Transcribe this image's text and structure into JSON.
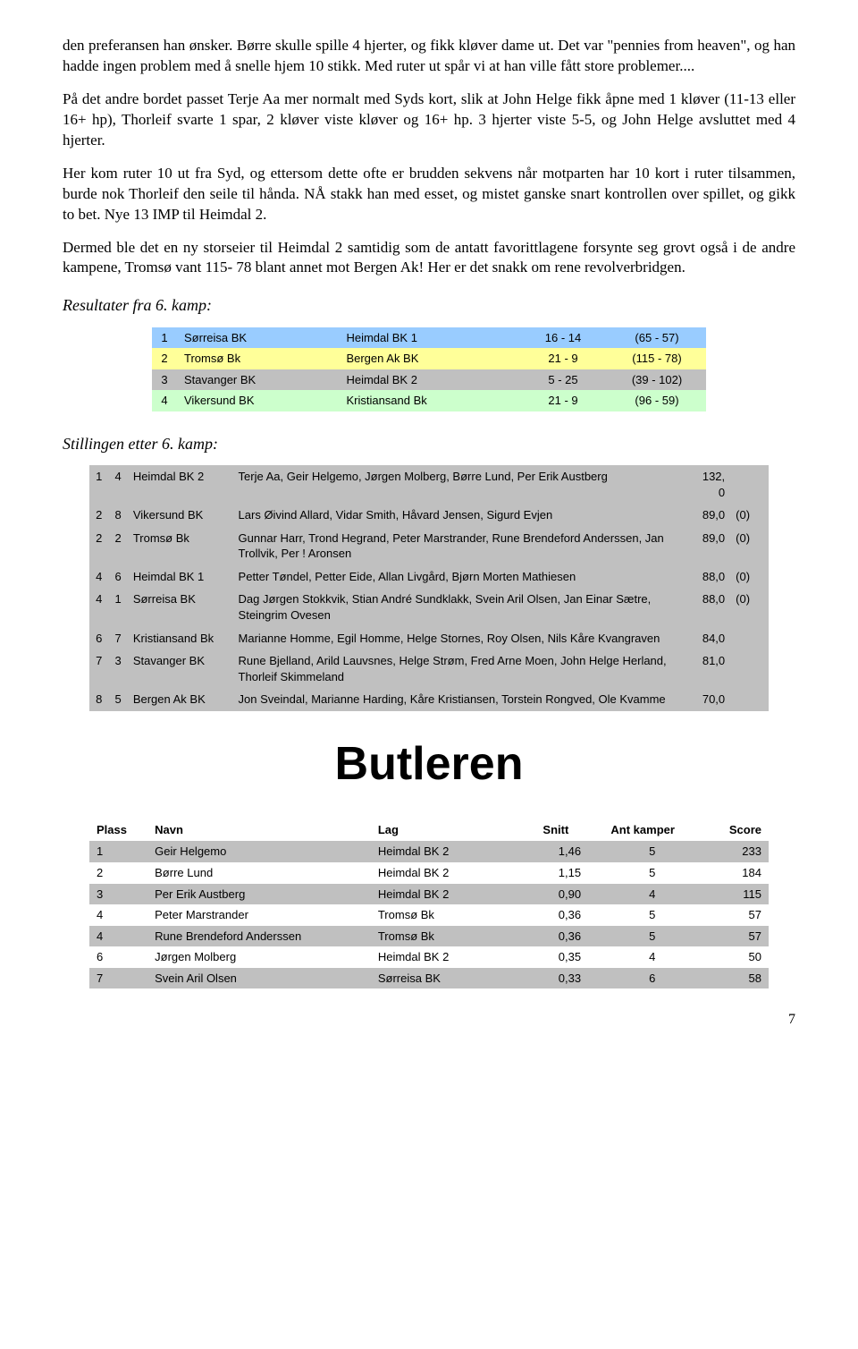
{
  "paragraphs": {
    "p1": "den preferansen han ønsker. Børre skulle spille 4 hjerter, og fikk kløver dame ut. Det var \"pennies from heaven\", og han hadde ingen problem med å snelle hjem 10 stikk. Med ruter ut spår vi at han ville fått store problemer....",
    "p2": "På det andre bordet passet Terje Aa mer normalt med Syds kort, slik at John Helge fikk åpne med 1 kløver (11-13 eller 16+ hp), Thorleif svarte 1 spar, 2 kløver viste kløver og 16+ hp. 3 hjerter viste 5-5, og John Helge avsluttet med 4 hjerter.",
    "p3": "Her kom ruter 10 ut fra Syd, og ettersom dette ofte er brudden sekvens når motparten har 10 kort i ruter tilsammen, burde nok Thorleif den seile til hånda. NÅ stakk han med esset, og mistet ganske snart kontrollen over spillet, og gikk to bet. Nye 13 IMP til Heimdal 2.",
    "p4": "Dermed ble det en ny storseier til Heimdal 2 samtidig som de antatt favorittlagene forsynte seg grovt også i de andre kampene, Tromsø vant 115- 78 blant annet mot Bergen Ak! Her er det snakk om rene revolverbridgen."
  },
  "headings": {
    "results": "Resultater fra 6. kamp:",
    "standings": "Stillingen etter 6. kamp:"
  },
  "results": {
    "colors": {
      "row1": "#99ccff",
      "row2": "#ffff99",
      "row3": "#c0c0c0",
      "row4": "#ccffcc"
    },
    "rows": [
      {
        "n": "1",
        "a": "Sørreisa BK",
        "b": "Heimdal BK 1",
        "score": "16 - 14",
        "diff": "(65 - 57)"
      },
      {
        "n": "2",
        "a": "Tromsø Bk",
        "b": "Bergen Ak BK",
        "score": "21 - 9",
        "diff": "(115 - 78)"
      },
      {
        "n": "3",
        "a": "Stavanger BK",
        "b": "Heimdal BK 2",
        "score": "5 - 25",
        "diff": "(39 - 102)"
      },
      {
        "n": "4",
        "a": "Vikersund BK",
        "b": "Kristiansand Bk",
        "score": "21 - 9",
        "diff": "(96 - 59)"
      }
    ]
  },
  "standings": {
    "gray": "#c0c0c0",
    "rows": [
      {
        "r": "1",
        "p": "4",
        "team": "Heimdal BK 2",
        "players": "Terje Aa, Geir Helgemo, Jørgen Molberg, Børre Lund, Per Erik Austberg",
        "pts": "132,\n0",
        "extra": ""
      },
      {
        "r": "2",
        "p": "8",
        "team": "Vikersund BK",
        "players": "Lars Øivind Allard, Vidar Smith, Håvard Jensen, Sigurd Evjen",
        "pts": "89,0",
        "extra": "(0)"
      },
      {
        "r": "2",
        "p": "2",
        "team": "Tromsø Bk",
        "players": "Gunnar Harr, Trond Hegrand, Peter Marstrander, Rune Brendeford Anderssen, Jan Trollvik, Per ! Aronsen",
        "pts": "89,0",
        "extra": "(0)"
      },
      {
        "r": "4",
        "p": "6",
        "team": "Heimdal BK 1",
        "players": "Petter Tøndel, Petter Eide, Allan Livgård, Bjørn Morten Mathiesen",
        "pts": "88,0",
        "extra": "(0)"
      },
      {
        "r": "4",
        "p": "1",
        "team": "Sørreisa BK",
        "players": "Dag Jørgen Stokkvik, Stian André Sundklakk, Svein Aril Olsen, Jan Einar Sætre, Steingrim Ovesen",
        "pts": "88,0",
        "extra": "(0)"
      },
      {
        "r": "6",
        "p": "7",
        "team": "Kristiansand Bk",
        "players": "Marianne Homme, Egil Homme, Helge Stornes, Roy Olsen, Nils Kåre Kvangraven",
        "pts": "84,0",
        "extra": ""
      },
      {
        "r": "7",
        "p": "3",
        "team": "Stavanger BK",
        "players": "Rune Bjelland, Arild Lauvsnes, Helge Strøm, Fred Arne Moen, John Helge Herland, Thorleif Skimmeland",
        "pts": "81,0",
        "extra": ""
      },
      {
        "r": "8",
        "p": "5",
        "team": "Bergen Ak BK",
        "players": "Jon Sveindal, Marianne Harding, Kåre Kristiansen, Torstein Rongved, Ole Kvamme",
        "pts": "70,0",
        "extra": ""
      }
    ]
  },
  "butler": {
    "title": "Butleren",
    "gray": "#c0c0c0",
    "headers": {
      "plass": "Plass",
      "navn": "Navn",
      "lag": "Lag",
      "snitt": "Snitt",
      "ant": "Ant kamper",
      "score": "Score"
    },
    "rows": [
      {
        "plass": "1",
        "navn": "Geir Helgemo",
        "lag": "Heimdal BK 2",
        "snitt": "1,46",
        "ant": "5",
        "score": "233"
      },
      {
        "plass": "2",
        "navn": "Børre Lund",
        "lag": "Heimdal BK 2",
        "snitt": "1,15",
        "ant": "5",
        "score": "184"
      },
      {
        "plass": "3",
        "navn": "Per Erik Austberg",
        "lag": "Heimdal BK 2",
        "snitt": "0,90",
        "ant": "4",
        "score": "115"
      },
      {
        "plass": "4",
        "navn": "Peter Marstrander",
        "lag": "Tromsø Bk",
        "snitt": "0,36",
        "ant": "5",
        "score": "57"
      },
      {
        "plass": "4",
        "navn": "Rune Brendeford Anderssen",
        "lag": "Tromsø Bk",
        "snitt": "0,36",
        "ant": "5",
        "score": "57"
      },
      {
        "plass": "6",
        "navn": "Jørgen Molberg",
        "lag": "Heimdal BK 2",
        "snitt": "0,35",
        "ant": "4",
        "score": "50"
      },
      {
        "plass": "7",
        "navn": "Svein Aril Olsen",
        "lag": "Sørreisa BK",
        "snitt": "0,33",
        "ant": "6",
        "score": "58"
      }
    ]
  },
  "page_number": "7"
}
